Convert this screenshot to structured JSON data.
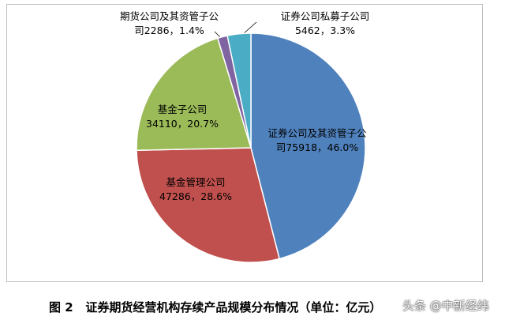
{
  "chart_data": {
    "type": "pie",
    "categories": [
      "证券公司及其资管子公司",
      "基金管理公司",
      "基金子公司",
      "期货公司及其资管子公司",
      "证券公司私募子公司"
    ],
    "values": [
      75918,
      47286,
      34110,
      2286,
      5462
    ],
    "value_labels": [
      "75918，46.0%",
      "47286，28.6%",
      "34110，20.7%",
      "2286，1.4%",
      "5462，3.3%"
    ],
    "colors": [
      "#4f81bd",
      "#c0504d",
      "#9bbb59",
      "#8064a2",
      "#4bacc6"
    ],
    "caption": "图 2   证券期货经营机构存续产品规模分布情况（单位：亿元）",
    "watermark": "头条 @中新经纬"
  }
}
